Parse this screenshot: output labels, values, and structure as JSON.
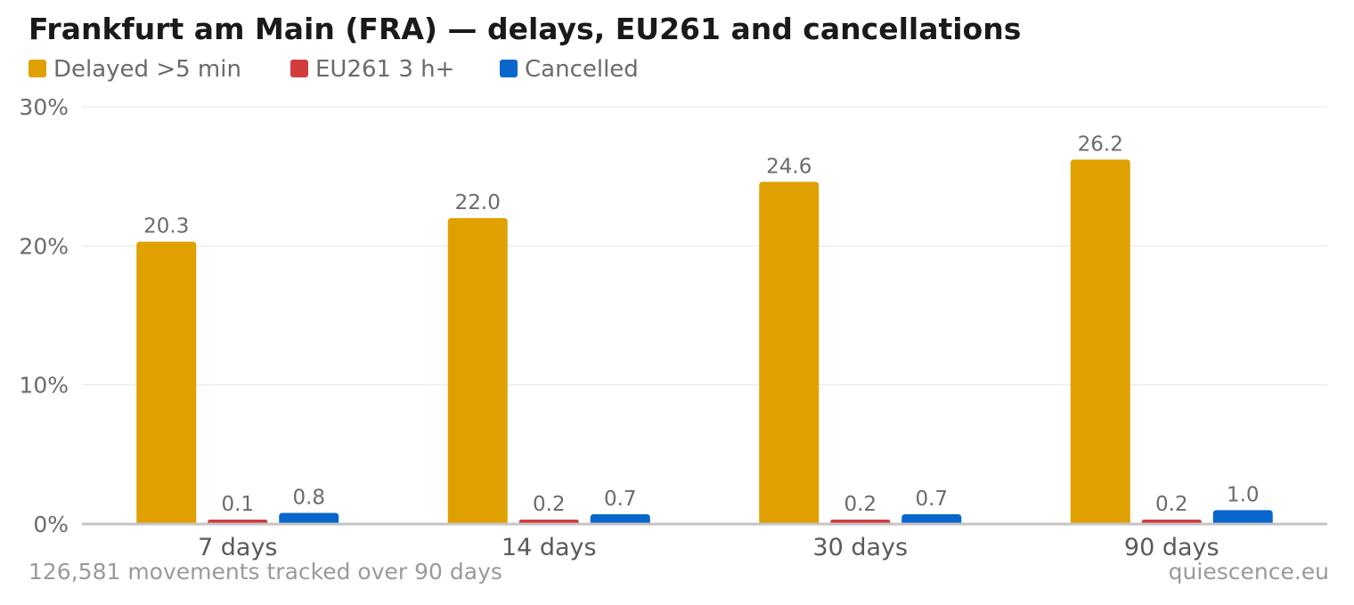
{
  "chart_data": {
    "type": "bar",
    "title": "Frankfurt am Main (FRA) — delays, EU261 and cancellations",
    "categories": [
      "7 days",
      "14 days",
      "30 days",
      "90 days"
    ],
    "series": [
      {
        "name": "Delayed >5 min",
        "color": "#dfa000",
        "values": [
          20.3,
          22.0,
          24.6,
          26.2
        ],
        "labels": [
          "20.3",
          "22.0",
          "24.6",
          "26.2"
        ]
      },
      {
        "name": "EU261 3 h+",
        "color": "#d13c3c",
        "values": [
          0.1,
          0.2,
          0.2,
          0.2
        ],
        "labels": [
          "0.1",
          "0.2",
          "0.2",
          "0.2"
        ]
      },
      {
        "name": "Cancelled",
        "color": "#0966cc",
        "values": [
          0.8,
          0.7,
          0.7,
          1.0
        ],
        "labels": [
          "0.8",
          "0.7",
          "0.7",
          "1.0"
        ]
      }
    ],
    "ylim": [
      0,
      30
    ],
    "yticks": [
      0,
      10,
      20,
      30
    ],
    "ytick_labels": [
      "0%",
      "10%",
      "20%",
      "30%"
    ],
    "grid": true,
    "legend": "top-left"
  },
  "footer": {
    "note": "126,581 movements tracked over 90 days",
    "source": "quiescence.eu"
  }
}
